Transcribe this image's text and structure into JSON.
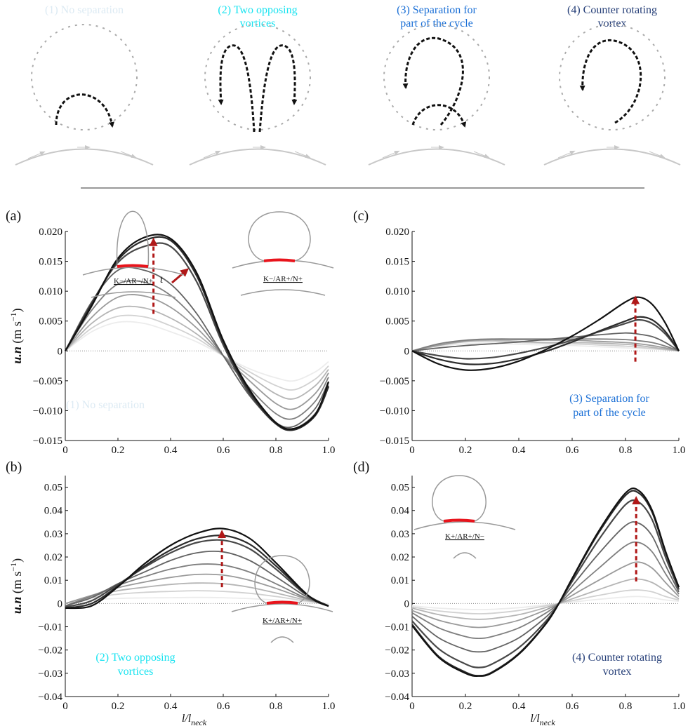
{
  "colors": {
    "cat1": "#dceaf3",
    "cat2": "#19e3f0",
    "cat3": "#1a6fd6",
    "cat4": "#263f78",
    "arrow": "#b01818",
    "neck": "#e8141c",
    "series_light": "#ececec",
    "series_dark": "#111111"
  },
  "schematics": [
    {
      "label_lines": [
        "(1) No separation"
      ],
      "color_key": "cat1",
      "icon": "single-arc-vortex-icon"
    },
    {
      "label_lines": [
        "(2) Two opposing",
        "vortices"
      ],
      "color_key": "cat2",
      "icon": "two-opposing-vortices-icon"
    },
    {
      "label_lines": [
        "(3) Separation for",
        "part of the cycle"
      ],
      "color_key": "cat3",
      "icon": "partial-separation-vortex-icon"
    },
    {
      "label_lines": [
        "(4) Counter rotating",
        "vortex"
      ],
      "color_key": "cat4",
      "icon": "counter-rotating-vortex-icon"
    }
  ],
  "xlabel": "l/l",
  "xlabel_sub": "neck",
  "ylabel_main": "u.n",
  "ylabel_unit": "(m s",
  "ylabel_exp": "−1",
  "ylabel_close": ")",
  "time_label": "t",
  "chart_data": [
    {
      "panel": "(a)",
      "type": "line",
      "xlim": [
        0,
        1
      ],
      "ylim": [
        -0.015,
        0.02
      ],
      "x_ticks": [
        "0",
        "0.2",
        "0.4",
        "0.6",
        "0.8",
        "1.0"
      ],
      "y_ticks": [
        "0.020",
        "0.015",
        "0.010",
        "0.005",
        "0",
        "−0.005",
        "−0.010",
        "−0.015"
      ],
      "y_tick_values": [
        0.02,
        0.015,
        0.01,
        0.005,
        0,
        -0.005,
        -0.01,
        -0.015
      ],
      "inset_label": "K−/AR+/N+",
      "annotation": "(1) No separation",
      "annotation_color_key": "cat1",
      "x": [
        0,
        0.1,
        0.2,
        0.3,
        0.4,
        0.5,
        0.6,
        0.7,
        0.8,
        0.87,
        0.95,
        1.0
      ],
      "series": [
        {
          "values": [
            0,
            0.0032,
            0.0048,
            0.0046,
            0.0032,
            0.0015,
            -0.0008,
            -0.003,
            -0.0045,
            -0.005,
            -0.0035,
            -0.0018
          ]
        },
        {
          "values": [
            0,
            0.0038,
            0.0058,
            0.0057,
            0.0042,
            0.0021,
            -0.0008,
            -0.0035,
            -0.0058,
            -0.0065,
            -0.0047,
            -0.0025
          ]
        },
        {
          "values": [
            0,
            0.0046,
            0.0072,
            0.0072,
            0.0055,
            0.0028,
            -0.0008,
            -0.0042,
            -0.0072,
            -0.008,
            -0.0058,
            -0.0031
          ]
        },
        {
          "values": [
            0,
            0.0056,
            0.009,
            0.0092,
            0.0073,
            0.0038,
            -0.0008,
            -0.005,
            -0.0088,
            -0.0097,
            -0.0071,
            -0.0037
          ]
        },
        {
          "values": [
            0,
            0.0068,
            0.0112,
            0.0115,
            0.0093,
            0.005,
            -0.0008,
            -0.0062,
            -0.0105,
            -0.0113,
            -0.0084,
            -0.0044
          ]
        },
        {
          "values": [
            0,
            0.0082,
            0.0135,
            0.0135,
            0.0112,
            0.0062,
            -0.0008,
            -0.0075,
            -0.012,
            -0.0126,
            -0.0096,
            -0.0051
          ]
        },
        {
          "values": [
            0,
            0.008,
            0.0148,
            0.0175,
            0.0175,
            0.0115,
            0.001,
            -0.0072,
            -0.0122,
            -0.013,
            -0.0105,
            -0.0058
          ]
        },
        {
          "values": [
            0,
            0.0078,
            0.0152,
            0.0185,
            0.0185,
            0.0125,
            0.0015,
            -0.0068,
            -0.0122,
            -0.0132,
            -0.0108,
            -0.006
          ]
        },
        {
          "values": [
            0,
            0.0075,
            0.0155,
            0.019,
            0.0188,
            0.013,
            0.0018,
            -0.0065,
            -0.012,
            -0.013,
            -0.0106,
            -0.0052
          ]
        }
      ]
    },
    {
      "panel": "(c)",
      "type": "line",
      "xlim": [
        0,
        1
      ],
      "ylim": [
        -0.015,
        0.02
      ],
      "x_ticks": [
        "0",
        "0.2",
        "0.4",
        "0.6",
        "0.8",
        "1.0"
      ],
      "y_ticks": [
        "0.020",
        "0.015",
        "0.010",
        "0.005",
        "0",
        "−0.005",
        "−0.010",
        "−0.015"
      ],
      "y_tick_values": [
        0.02,
        0.015,
        0.01,
        0.005,
        0,
        -0.005,
        -0.01,
        -0.015
      ],
      "inset_label": "K−/AR−/N+",
      "annotation_lines": [
        "(3) Separation for",
        "part of the cycle"
      ],
      "annotation_color_key": "cat3",
      "x": [
        0,
        0.1,
        0.2,
        0.3,
        0.4,
        0.5,
        0.6,
        0.7,
        0.8,
        0.85,
        0.9,
        0.95,
        1.0
      ],
      "series": [
        {
          "values": [
            0,
            0.0008,
            0.0012,
            0.0013,
            0.0011,
            0.001,
            0.0009,
            0.0007,
            0.0005,
            0.0004,
            0.0003,
            0.0002,
            0
          ]
        },
        {
          "values": [
            0,
            0.0009,
            0.0015,
            0.0016,
            0.0014,
            0.0013,
            0.0012,
            0.001,
            0.0008,
            0.0006,
            0.0004,
            0.0002,
            0
          ]
        },
        {
          "values": [
            0,
            0.0009,
            0.0016,
            0.0018,
            0.0016,
            0.0014,
            0.0014,
            0.0013,
            0.0011,
            0.0009,
            0.0006,
            0.0003,
            0
          ]
        },
        {
          "values": [
            0,
            0.001,
            0.0017,
            0.0019,
            0.0019,
            0.0018,
            0.0018,
            0.0016,
            0.0014,
            0.0012,
            0.0009,
            0.0005,
            0
          ]
        },
        {
          "values": [
            0,
            0.0012,
            0.0018,
            0.002,
            0.002,
            0.002,
            0.002,
            0.002,
            0.0019,
            0.0017,
            0.0014,
            0.0008,
            0
          ]
        },
        {
          "values": [
            0,
            0.0005,
            0.0009,
            0.0012,
            0.0015,
            0.0019,
            0.0023,
            0.0027,
            0.003,
            0.0028,
            0.0024,
            0.0014,
            0
          ]
        },
        {
          "values": [
            0,
            -0.0008,
            -0.0013,
            -0.0011,
            -0.0004,
            0.0006,
            0.0018,
            0.0032,
            0.0046,
            0.0052,
            0.0046,
            0.0028,
            0
          ]
        },
        {
          "values": [
            0,
            -0.0014,
            -0.0022,
            -0.0021,
            -0.0013,
            -0.0001,
            0.0015,
            0.0033,
            0.005,
            0.0057,
            0.0052,
            0.0032,
            0
          ]
        },
        {
          "values": [
            0,
            -0.0022,
            -0.0032,
            -0.0029,
            -0.0017,
            0.0002,
            0.0025,
            0.0052,
            0.0082,
            0.009,
            0.0078,
            0.0046,
            0
          ]
        }
      ]
    },
    {
      "panel": "(b)",
      "type": "line",
      "xlim": [
        0,
        1
      ],
      "ylim": [
        -0.04,
        0.055
      ],
      "x_ticks": [
        "0",
        "0.2",
        "0.4",
        "0.6",
        "0.8",
        "1.0"
      ],
      "y_ticks": [
        "0.05",
        "0.04",
        "0.03",
        "0.02",
        "0.01",
        "0",
        "−0.01",
        "−0.02",
        "−0.03",
        "−0.04"
      ],
      "y_tick_values": [
        0.05,
        0.04,
        0.03,
        0.02,
        0.01,
        0,
        -0.01,
        -0.02,
        -0.03,
        -0.04
      ],
      "inset_label": "K+/AR+/N+",
      "annotation_lines": [
        "(2) Two opposing",
        "vortices"
      ],
      "annotation_color_key": "cat2",
      "x": [
        0,
        0.1,
        0.2,
        0.3,
        0.4,
        0.5,
        0.6,
        0.7,
        0.8,
        0.9,
        0.95,
        1.0
      ],
      "series": [
        {
          "values": [
            0,
            0.0015,
            0.0022,
            0.0024,
            0.0025,
            0.0026,
            0.0025,
            0.0021,
            0.0015,
            0.0008,
            0.0003,
            0
          ]
        },
        {
          "values": [
            0,
            0.0025,
            0.004,
            0.0048,
            0.0052,
            0.0055,
            0.0052,
            0.0044,
            0.003,
            0.0013,
            0.0005,
            -0.001
          ]
        },
        {
          "values": [
            0,
            0.0032,
            0.0055,
            0.007,
            0.0082,
            0.0088,
            0.0085,
            0.007,
            0.0045,
            0.0018,
            0.0006,
            -0.001
          ]
        },
        {
          "values": [
            0,
            0.0035,
            0.0068,
            0.0092,
            0.0112,
            0.0125,
            0.0122,
            0.01,
            0.0065,
            0.0025,
            0.0008,
            -0.001
          ]
        },
        {
          "values": [
            -0.001,
            0.0032,
            0.0078,
            0.0115,
            0.0148,
            0.0168,
            0.0165,
            0.0135,
            0.0085,
            0.003,
            0.001,
            -0.001
          ]
        },
        {
          "values": [
            -0.001,
            0.0025,
            0.0085,
            0.0135,
            0.0185,
            0.0218,
            0.0222,
            0.0185,
            0.0115,
            0.004,
            0.001,
            -0.001
          ]
        },
        {
          "values": [
            -0.0015,
            0.0012,
            0.0082,
            0.0155,
            0.0218,
            0.0262,
            0.0272,
            0.0235,
            0.0148,
            0.005,
            0.0015,
            -0.001
          ]
        },
        {
          "values": [
            -0.002,
            0,
            0.0075,
            0.016,
            0.023,
            0.0278,
            0.0292,
            0.0255,
            0.0162,
            0.0055,
            0.0015,
            -0.001
          ]
        },
        {
          "values": [
            -0.002,
            -0.001,
            0.0072,
            0.017,
            0.025,
            0.0302,
            0.0322,
            0.028,
            0.0175,
            0.0058,
            0.0012,
            -0.0012
          ]
        }
      ]
    },
    {
      "panel": "(d)",
      "type": "line",
      "xlim": [
        0,
        1
      ],
      "ylim": [
        -0.04,
        0.055
      ],
      "x_ticks": [
        "0",
        "0.2",
        "0.4",
        "0.6",
        "0.8",
        "1.0"
      ],
      "y_ticks": [
        "0.05",
        "0.04",
        "0.03",
        "0.02",
        "0.01",
        "0",
        "−0.01",
        "−0.02",
        "−0.03",
        "−0.04"
      ],
      "y_tick_values": [
        0.05,
        0.04,
        0.03,
        0.02,
        0.01,
        0,
        -0.01,
        -0.02,
        -0.03,
        -0.04
      ],
      "inset_label": "K+/AR+/N−",
      "annotation_lines": [
        "(4) Counter rotating",
        "vortex"
      ],
      "annotation_color_key": "cat4",
      "x": [
        0,
        0.1,
        0.2,
        0.25,
        0.3,
        0.4,
        0.5,
        0.55,
        0.6,
        0.7,
        0.8,
        0.85,
        0.9,
        0.95,
        1.0
      ],
      "series": [
        {
          "values": [
            -0.001,
            -0.002,
            -0.0025,
            -0.0026,
            -0.0025,
            -0.0018,
            -0.0006,
            0,
            0.0006,
            0.0018,
            0.0028,
            0.003,
            0.0025,
            0.0015,
            0.001
          ]
        },
        {
          "values": [
            -0.0015,
            -0.0032,
            -0.0042,
            -0.0044,
            -0.0042,
            -0.003,
            -0.001,
            0,
            0.0012,
            0.0035,
            0.0055,
            0.0058,
            0.005,
            0.003,
            0.0015
          ]
        },
        {
          "values": [
            -0.002,
            -0.0048,
            -0.0065,
            -0.0068,
            -0.0065,
            -0.0048,
            -0.0018,
            0,
            0.002,
            0.006,
            0.0098,
            0.0105,
            0.009,
            0.0055,
            0.002
          ]
        },
        {
          "values": [
            -0.003,
            -0.0072,
            -0.0098,
            -0.0103,
            -0.0098,
            -0.0072,
            -0.0028,
            0,
            0.0035,
            0.01,
            0.0162,
            0.0178,
            0.0152,
            0.009,
            0.003
          ]
        },
        {
          "values": [
            -0.004,
            -0.0105,
            -0.0142,
            -0.015,
            -0.0142,
            -0.0105,
            -0.0042,
            0,
            0.0052,
            0.0152,
            0.0248,
            0.0262,
            0.0222,
            0.0128,
            0.004
          ]
        },
        {
          "values": [
            -0.0055,
            -0.0148,
            -0.0198,
            -0.0208,
            -0.0198,
            -0.0148,
            -0.006,
            0,
            0.0075,
            0.0215,
            0.0335,
            0.0345,
            0.029,
            0.0165,
            0.005
          ]
        },
        {
          "values": [
            -0.0075,
            -0.0195,
            -0.026,
            -0.0275,
            -0.026,
            -0.019,
            -0.0078,
            0,
            0.0095,
            0.0275,
            0.0425,
            0.0435,
            0.036,
            0.02,
            0.006
          ]
        },
        {
          "values": [
            -0.009,
            -0.0228,
            -0.0295,
            -0.031,
            -0.0295,
            -0.0215,
            -0.0088,
            0,
            0.0105,
            0.0305,
            0.0465,
            0.0475,
            0.0392,
            0.022,
            0.007
          ]
        },
        {
          "values": [
            -0.0095,
            -0.0232,
            -0.03,
            -0.0312,
            -0.0298,
            -0.0218,
            -0.009,
            0,
            0.0108,
            0.0312,
            0.0475,
            0.0485,
            0.04,
            0.0225,
            0.007
          ]
        }
      ]
    }
  ]
}
